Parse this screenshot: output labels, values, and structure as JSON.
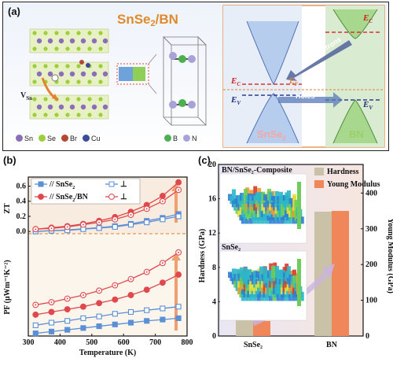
{
  "panel_a": {
    "label": "(a)",
    "title_main": "SnSe",
    "title_sub": "2",
    "title_rest": "/BN",
    "legend": [
      {
        "label": "Sn",
        "color": "#8a6fb8"
      },
      {
        "label": "Se",
        "color": "#9ccf3c"
      },
      {
        "label": "Br",
        "color": "#b5462f"
      },
      {
        "label": "Cu",
        "color": "#3c4a9a"
      }
    ],
    "bn_legend": [
      {
        "label": "B",
        "color": "#4caf50"
      },
      {
        "label": "N",
        "color": "#a7a3d9"
      }
    ],
    "vsn_label": "V",
    "vsn_sub": "Sn",
    "band": {
      "ec_left": "E",
      "ec_left_sub": "C",
      "ef": "E",
      "ef_sub": "F",
      "ev_left": "E",
      "ev_left_sub": "V",
      "ec_right": "E",
      "ec_right_sub": "C",
      "ev_right": "E",
      "ev_right_sub": "V",
      "electrons": "Electrons",
      "holes": "Holes",
      "snse2_label": "SnSe",
      "snse2_sub": "2",
      "bn_label": "BN"
    }
  },
  "panel_b": {
    "label": "(b)",
    "legend": [
      {
        "sym": "//",
        "name": "SnSe",
        "sub": "2",
        "color": "#5b8fd6",
        "filled": true
      },
      {
        "sym": "⊥",
        "name": "",
        "sub": "",
        "color": "#5b8fd6",
        "filled": false
      },
      {
        "sym": "//",
        "name": "SnSe",
        "sub": "2",
        "name2": "/BN",
        "color": "#e0484d",
        "filled": true
      },
      {
        "sym": "⊥",
        "name": "",
        "sub": "",
        "color": "#e0484d",
        "filled": false
      }
    ],
    "chart_data": {
      "type": "line",
      "xlabel": "Temperature (K)",
      "x_ticks": [
        300,
        400,
        500,
        600,
        700,
        800
      ],
      "xlim": [
        300,
        800
      ],
      "zt": {
        "ylabel": "ZT",
        "y_ticks": [
          "0.0",
          "0.2",
          "0.4",
          "0.6"
        ],
        "ylim": [
          -0.03,
          0.72
        ],
        "x": [
          323,
          373,
          423,
          473,
          523,
          573,
          623,
          673,
          723,
          773
        ],
        "series": [
          {
            "name": "SnSe2 //",
            "color": "#5b8fd6",
            "marker": "square-filled",
            "values": [
              0.0,
              0.01,
              0.02,
              0.035,
              0.05,
              0.07,
              0.1,
              0.14,
              0.18,
              0.23
            ]
          },
          {
            "name": "SnSe2 ⊥",
            "color": "#5b8fd6",
            "marker": "square-open",
            "values": [
              0.0,
              0.01,
              0.015,
              0.03,
              0.045,
              0.06,
              0.09,
              0.12,
              0.16,
              0.2
            ]
          },
          {
            "name": "SnSe2/BN //",
            "color": "#e0484d",
            "marker": "circle-filled",
            "values": [
              0.03,
              0.05,
              0.07,
              0.1,
              0.14,
              0.19,
              0.26,
              0.35,
              0.47,
              0.65
            ]
          },
          {
            "name": "SnSe2/BN ⊥",
            "color": "#e0484d",
            "marker": "circle-open",
            "values": [
              0.03,
              0.04,
              0.06,
              0.09,
              0.12,
              0.16,
              0.22,
              0.3,
              0.4,
              0.55
            ]
          }
        ]
      },
      "pf": {
        "ylabel": "PF (μWm⁻¹K⁻²)",
        "ylim": [
          0,
          1150
        ],
        "series": [
          {
            "name": "SnSe2 //",
            "color": "#5b8fd6",
            "marker": "square-filled",
            "values": [
              30,
              50,
              70,
              90,
              110,
              130,
              150,
              170,
              185,
              200
            ]
          },
          {
            "name": "SnSe2 ⊥",
            "color": "#5b8fd6",
            "marker": "square-open",
            "values": [
              120,
              150,
              170,
              200,
              220,
              250,
              270,
              290,
              310,
              330
            ]
          },
          {
            "name": "SnSe2/BN //",
            "color": "#e0484d",
            "marker": "circle-filled",
            "values": [
              240,
              270,
              300,
              330,
              370,
              410,
              460,
              520,
              600,
              690
            ]
          },
          {
            "name": "SnSe2/BN ⊥",
            "color": "#e0484d",
            "marker": "circle-open",
            "values": [
              350,
              380,
              420,
              460,
              510,
              570,
              640,
              720,
              820,
              940
            ]
          }
        ]
      }
    }
  },
  "panel_c": {
    "label": "(c)",
    "inset_top_title": "BN/SnSe₂-Composite",
    "inset_bottom_title": "SnSe₂",
    "legend": [
      {
        "label": "Hardness",
        "color": "#c9c2a6"
      },
      {
        "label": "Young Modulus",
        "color": "#f0875a"
      }
    ],
    "chart_data": {
      "type": "bar",
      "categories": [
        "SnSe₂",
        "BN"
      ],
      "y_left_label": "Hardness (GPa)",
      "y_right_label": "Young Modulus (GPa)",
      "y_left_ticks": [
        "0",
        "4",
        "8",
        "12",
        "16",
        "20"
      ],
      "y_right_ticks": [
        "0",
        "100",
        "200",
        "300",
        "400"
      ],
      "y_left_lim": [
        0,
        20
      ],
      "y_right_lim": [
        0,
        480
      ],
      "series": [
        {
          "name": "Hardness",
          "axis": "left",
          "values": [
            2.1,
            14.5
          ]
        },
        {
          "name": "Young Modulus",
          "axis": "right",
          "values": [
            42,
            350
          ]
        }
      ]
    }
  }
}
